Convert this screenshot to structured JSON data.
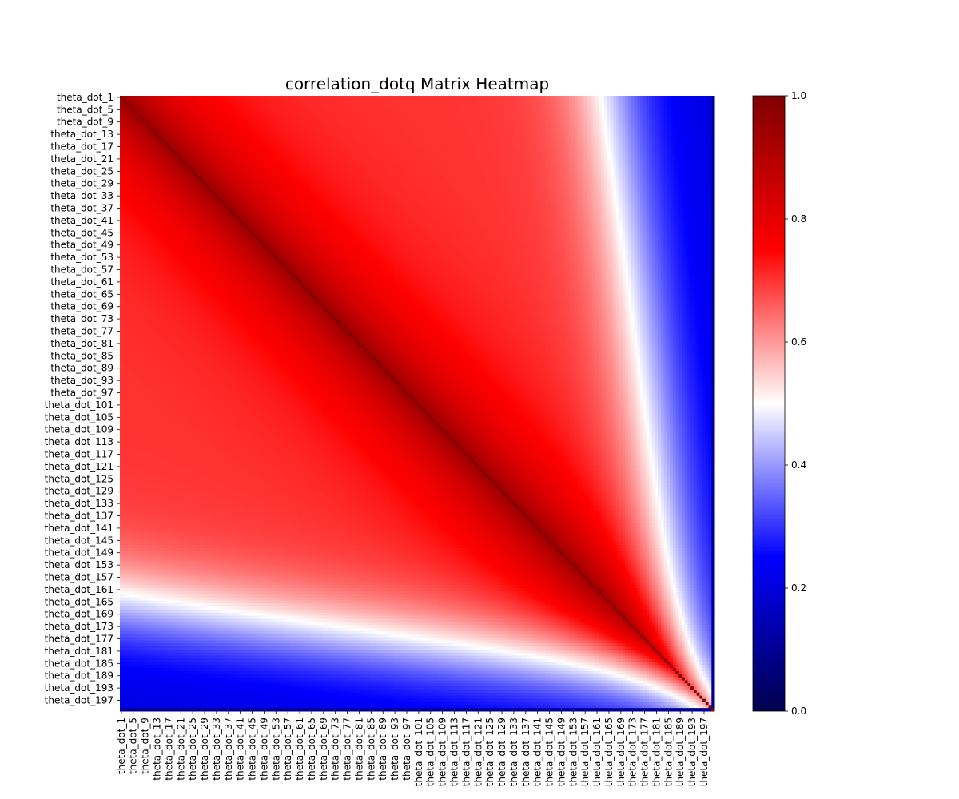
{
  "chart_data": {
    "type": "heatmap",
    "title": "correlation_dotq Matrix Heatmap",
    "variable_prefix": "theta_dot_",
    "n_variables": 200,
    "tick_step": 4,
    "x_tick_labels": [
      "theta_dot_1",
      "theta_dot_5",
      "theta_dot_9",
      "theta_dot_13",
      "theta_dot_17",
      "theta_dot_21",
      "theta_dot_25",
      "theta_dot_29",
      "theta_dot_33",
      "theta_dot_37",
      "theta_dot_41",
      "theta_dot_45",
      "theta_dot_49",
      "theta_dot_53",
      "theta_dot_57",
      "theta_dot_61",
      "theta_dot_65",
      "theta_dot_69",
      "theta_dot_73",
      "theta_dot_77",
      "theta_dot_81",
      "theta_dot_85",
      "theta_dot_89",
      "theta_dot_93",
      "theta_dot_97",
      "theta_dot_101",
      "theta_dot_105",
      "theta_dot_109",
      "theta_dot_113",
      "theta_dot_117",
      "theta_dot_121",
      "theta_dot_125",
      "theta_dot_129",
      "theta_dot_133",
      "theta_dot_137",
      "theta_dot_141",
      "theta_dot_145",
      "theta_dot_149",
      "theta_dot_153",
      "theta_dot_157",
      "theta_dot_161",
      "theta_dot_165",
      "theta_dot_169",
      "theta_dot_173",
      "theta_dot_177",
      "theta_dot_181",
      "theta_dot_185",
      "theta_dot_189",
      "theta_dot_193",
      "theta_dot_197"
    ],
    "y_tick_labels": [
      "theta_dot_1",
      "theta_dot_5",
      "theta_dot_9",
      "theta_dot_13",
      "theta_dot_17",
      "theta_dot_21",
      "theta_dot_25",
      "theta_dot_29",
      "theta_dot_33",
      "theta_dot_37",
      "theta_dot_41",
      "theta_dot_45",
      "theta_dot_49",
      "theta_dot_53",
      "theta_dot_57",
      "theta_dot_61",
      "theta_dot_65",
      "theta_dot_69",
      "theta_dot_73",
      "theta_dot_77",
      "theta_dot_81",
      "theta_dot_85",
      "theta_dot_89",
      "theta_dot_93",
      "theta_dot_97",
      "theta_dot_101",
      "theta_dot_105",
      "theta_dot_109",
      "theta_dot_113",
      "theta_dot_117",
      "theta_dot_121",
      "theta_dot_125",
      "theta_dot_129",
      "theta_dot_133",
      "theta_dot_137",
      "theta_dot_141",
      "theta_dot_145",
      "theta_dot_149",
      "theta_dot_153",
      "theta_dot_157",
      "theta_dot_161",
      "theta_dot_165",
      "theta_dot_169",
      "theta_dot_173",
      "theta_dot_177",
      "theta_dot_181",
      "theta_dot_185",
      "theta_dot_189",
      "theta_dot_193",
      "theta_dot_197"
    ],
    "value_range": [
      0,
      1
    ],
    "colorbar_ticks": [
      "0.0",
      "0.2",
      "0.4",
      "0.6",
      "0.8",
      "1.0"
    ],
    "colorbar_tick_values": [
      0,
      0.2,
      0.4,
      0.6,
      0.8,
      1.0
    ],
    "colormap": "seismic",
    "colormap_stops": [
      {
        "value": 0.0,
        "color": "#00004c"
      },
      {
        "value": 0.25,
        "color": "#0000ff"
      },
      {
        "value": 0.5,
        "color": "#ffffff"
      },
      {
        "value": 0.75,
        "color": "#ff0000"
      },
      {
        "value": 1.0,
        "color": "#800000"
      }
    ],
    "approximate_structure": {
      "diagonal": 1.0,
      "near_diagonal_decay": 0.25,
      "near_diagonal_width": 20,
      "interior_plateau": 0.7,
      "boundary_index": 165,
      "boundary_width": 9,
      "far_value": 0.2,
      "last_variable_self": 1.0
    },
    "grid": false,
    "legend": "colorbar-right"
  }
}
